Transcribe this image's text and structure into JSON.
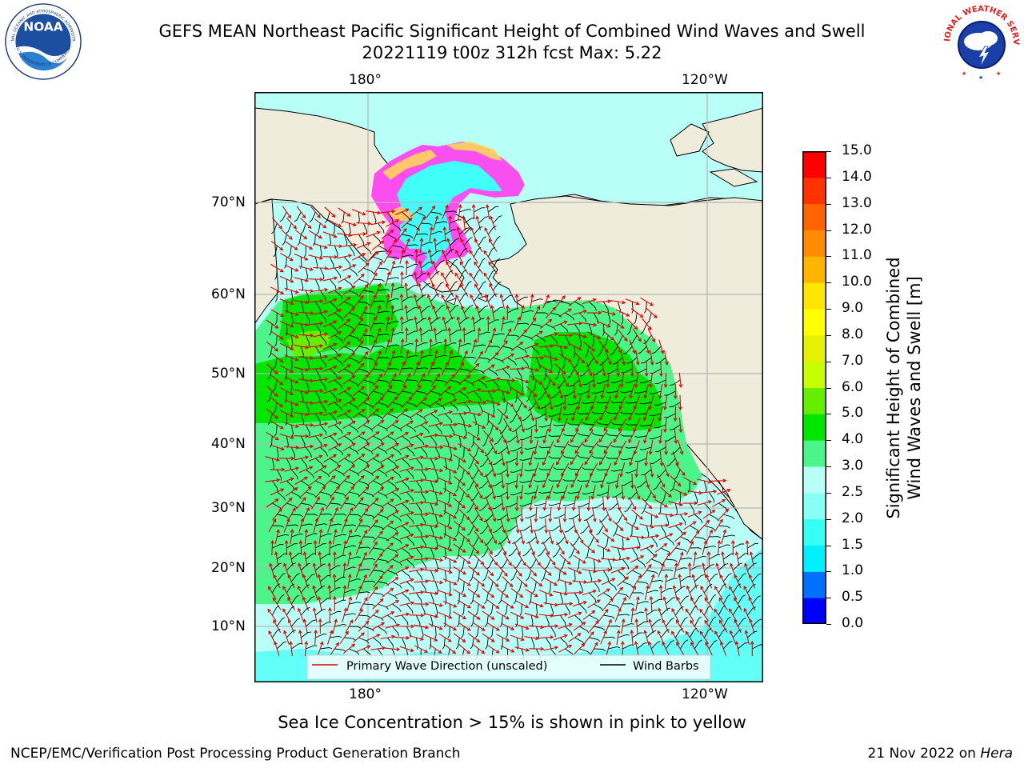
{
  "header": {
    "title_line1": "GEFS MEAN Northeast Pacific Significant Height of Combined Wind Waves and Swell",
    "title_line2": "20221119 t00z 312h fcst   Max: 5.22"
  },
  "logos": {
    "noaa": {
      "icon": "noaa-logo",
      "text": "NOAA",
      "ring_text": "NATIONAL OCEANIC AND ATMOSPHERIC ADMINISTRATION",
      "bottom_text": "U.S. DEPARTMENT OF COMMERCE"
    },
    "nws": {
      "icon": "nws-logo",
      "ring_text": "NATIONAL WEATHER SERVICE"
    }
  },
  "map": {
    "longitude_labels": [
      "180°",
      "120°W"
    ],
    "latitude_labels": [
      "70°N",
      "60°N",
      "50°N",
      "40°N",
      "30°N",
      "20°N",
      "10°N"
    ],
    "legend": {
      "wave_direction": "Primary Wave Direction (unscaled)",
      "wind_barbs": "Wind Barbs"
    },
    "colors": {
      "land": "#efecdc",
      "ice_pink": "#ff3cf0",
      "ice_yellow": "#ffd45a",
      "grid": "#b4b4b4",
      "wave_arrow": "#e00000",
      "wind_barb": "#000000"
    }
  },
  "colorbar": {
    "label_line1": "Significant Height of Combined",
    "label_line2": "Wind Waves and Swell [m]",
    "ticks": [
      "0.0",
      "0.5",
      "1.0",
      "1.5",
      "2.0",
      "2.5",
      "3.0",
      "4.0",
      "5.0",
      "6.0",
      "7.0",
      "8.0",
      "9.0",
      "10.0",
      "11.0",
      "12.0",
      "13.0",
      "14.0",
      "15.0"
    ],
    "colors": [
      "#0000ff",
      "#0070ff",
      "#00f0ff",
      "#35fff5",
      "#88fff5",
      "#b8fff8",
      "#4cf58a",
      "#00e600",
      "#66ee00",
      "#c8ff00",
      "#e6f000",
      "#ffff00",
      "#ffe600",
      "#ffb400",
      "#ff8c00",
      "#ff6400",
      "#ff3200",
      "#ff0000"
    ]
  },
  "note": "Sea Ice Concentration > 15% is shown in pink to yellow",
  "footer": {
    "left": "NCEP/EMC/Verification Post Processing Product Generation Branch",
    "right_date": "21 Nov 2022 on",
    "right_host": "Hera"
  }
}
